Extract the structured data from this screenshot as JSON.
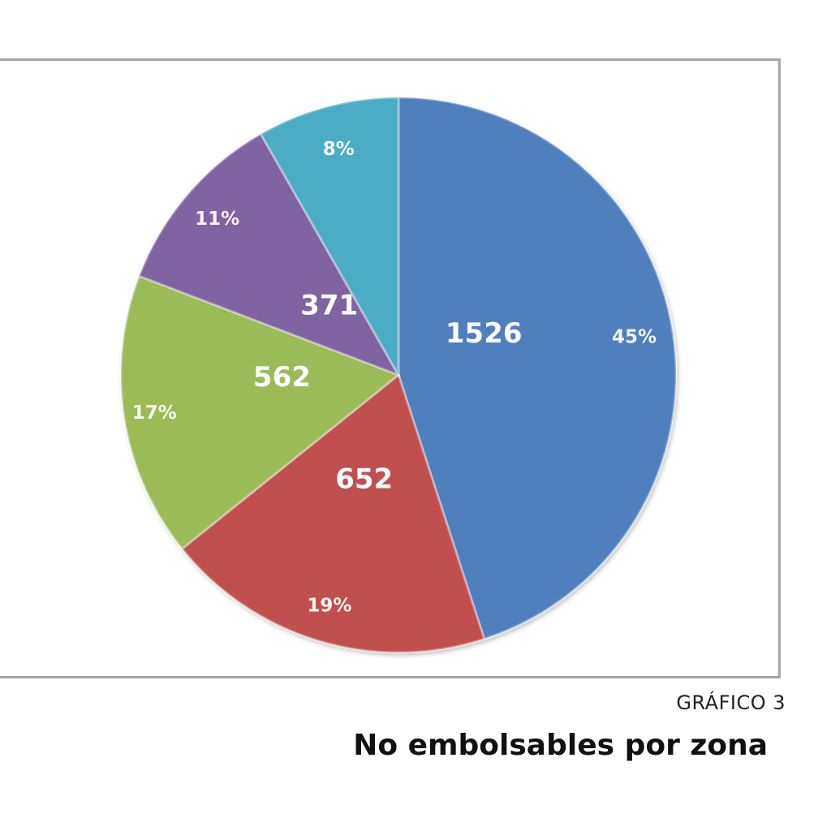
{
  "caption": {
    "kicker": "GRÁFICO 3",
    "title": "No embolsables por zona"
  },
  "chart_data": {
    "type": "pie",
    "start_angle_deg": 0,
    "direction": "clockwise",
    "slices": [
      {
        "value": 1526,
        "value_label": "1526",
        "percent_label": "45%",
        "color": "#4f7fbd"
      },
      {
        "value": 652,
        "value_label": "652",
        "percent_label": "19%",
        "color": "#c0504d"
      },
      {
        "value": 562,
        "value_label": "562",
        "percent_label": "17%",
        "color": "#9bbb59"
      },
      {
        "value": 371,
        "value_label": "371",
        "percent_label": "11%",
        "color": "#8064a2"
      },
      {
        "value": 280,
        "value_label": "",
        "percent_label": "8%",
        "color": "#4bacc6"
      }
    ]
  }
}
